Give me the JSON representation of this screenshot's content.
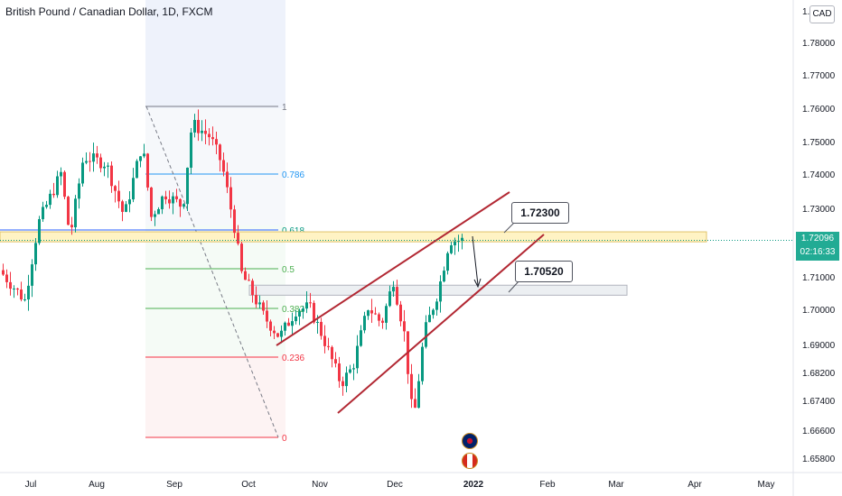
{
  "header": {
    "title": "British Pound / Canadian Dollar, 1D, FXCM",
    "currency_button": "CAD"
  },
  "price_tag": {
    "price": "1.72096",
    "countdown": "02:16:33",
    "color": "#22ab94"
  },
  "annotations": {
    "upper_level": "1.72300",
    "lower_level": "1.70520"
  },
  "fib_labels": [
    "1",
    "0.786",
    "0.618",
    "0.5",
    "0.382",
    "0.236",
    "0"
  ],
  "chart_data": {
    "type": "candlestick",
    "symbol": "GBPCAD",
    "timeframe": "1D",
    "y_ticks": [
      "1.79000",
      "1.78000",
      "1.77000",
      "1.76000",
      "1.75000",
      "1.74000",
      "1.73000",
      "1.72000",
      "1.71000",
      "1.70000",
      "1.69000",
      "1.68200",
      "1.67400",
      "1.66600",
      "1.65800"
    ],
    "x_ticks": [
      "Jul",
      "Aug",
      "Sep",
      "Oct",
      "Nov",
      "Dec",
      "2022",
      "Feb",
      "Mar",
      "Apr",
      "May"
    ],
    "current_price": 1.72096,
    "up_color": "#089981",
    "down_color": "#f23645",
    "fib_retracement": {
      "high": 1.7605,
      "low": 1.6636
    },
    "horizontal_zones": [
      {
        "from": 1.7205,
        "to": 1.7235,
        "color": "#fff3c4"
      },
      {
        "from": 1.7045,
        "to": 1.7075,
        "color": "#eceff2"
      }
    ],
    "channel_color": "#b22833"
  }
}
